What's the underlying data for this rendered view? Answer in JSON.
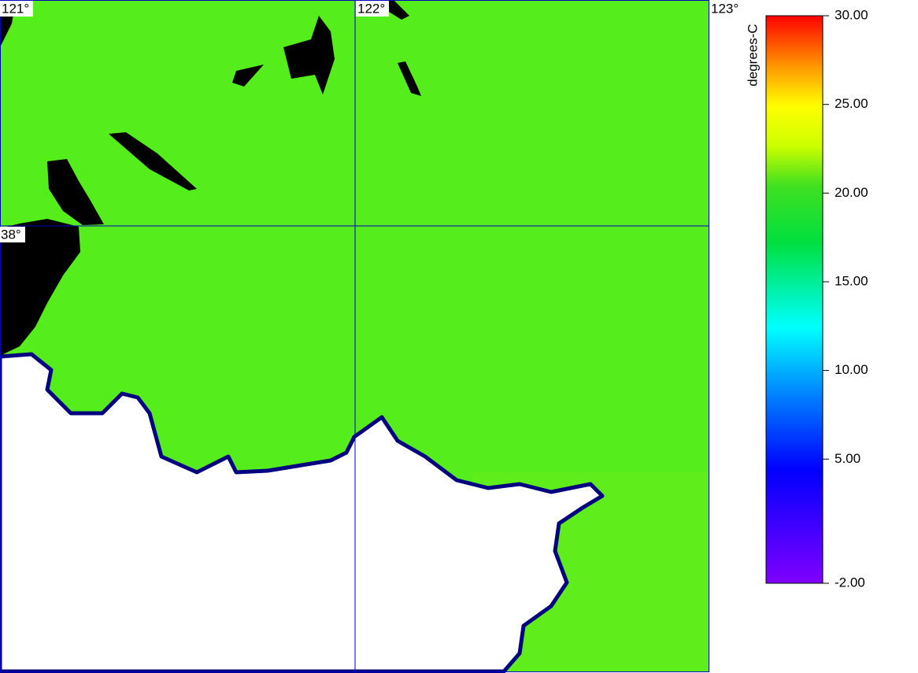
{
  "map": {
    "lon_labels": [
      "121°",
      "122°",
      "123°"
    ],
    "lat_labels": [
      "38°"
    ],
    "colorbar": {
      "label": "degrees-C",
      "range": [
        -2,
        30
      ],
      "ticks": [
        {
          "value": 30,
          "label": "30.00"
        },
        {
          "value": 25,
          "label": "25.00"
        },
        {
          "value": 20,
          "label": "20.00"
        },
        {
          "value": 15,
          "label": "15.00"
        },
        {
          "value": 10,
          "label": "10.00"
        },
        {
          "value": 5,
          "label": "5.00"
        },
        {
          "value": -2,
          "label": "-2.00"
        }
      ]
    }
  }
}
